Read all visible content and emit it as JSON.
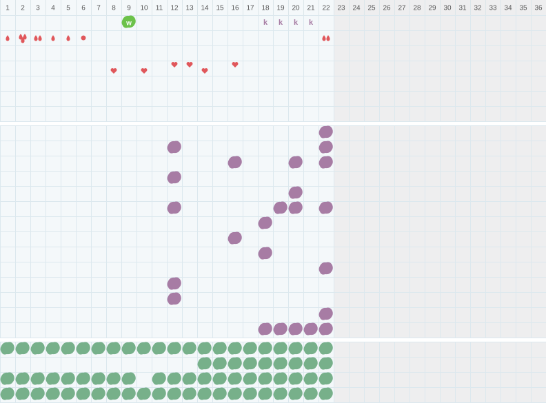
{
  "header": {
    "columns": [
      "1",
      "2",
      "3",
      "4",
      "5",
      "6",
      "7",
      "8",
      "9",
      "10",
      "11",
      "12",
      "13",
      "14",
      "15",
      "16",
      "17",
      "18",
      "19",
      "20",
      "21",
      "22",
      "23",
      "24",
      "25",
      "26",
      "27",
      "28",
      "29",
      "30",
      "31",
      "32",
      "33",
      "34",
      "35",
      "36"
    ]
  },
  "labels": {
    "w": "w",
    "k": [
      "k",
      "k",
      "k",
      "k"
    ]
  }
}
